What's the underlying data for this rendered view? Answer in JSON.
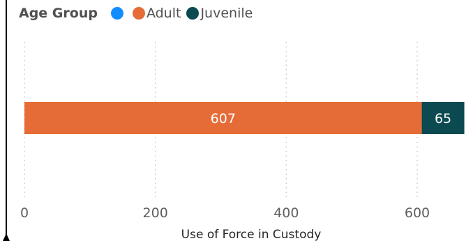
{
  "legend": {
    "title": "Age Group",
    "items": [
      {
        "label": "",
        "color": "#118DFF"
      },
      {
        "label": "Adult",
        "color": "#E66C37"
      },
      {
        "label": "Juvenile",
        "color": "#0B4A50"
      }
    ]
  },
  "chart_data": {
    "type": "bar",
    "orientation": "horizontal",
    "stacked": true,
    "categories": [
      ""
    ],
    "series": [
      {
        "name": "Adult",
        "values": [
          607
        ],
        "color": "#E66C37"
      },
      {
        "name": "Juvenile",
        "values": [
          65
        ],
        "color": "#0B4A50"
      }
    ],
    "xlabel": "Use of Force in Custody",
    "ylabel": "",
    "xlim": [
      0,
      672
    ],
    "xticks": [
      0,
      200,
      400,
      600
    ],
    "data_labels": [
      "607",
      "65"
    ],
    "grid": "vertical-dotted",
    "legend_position": "top-left"
  }
}
